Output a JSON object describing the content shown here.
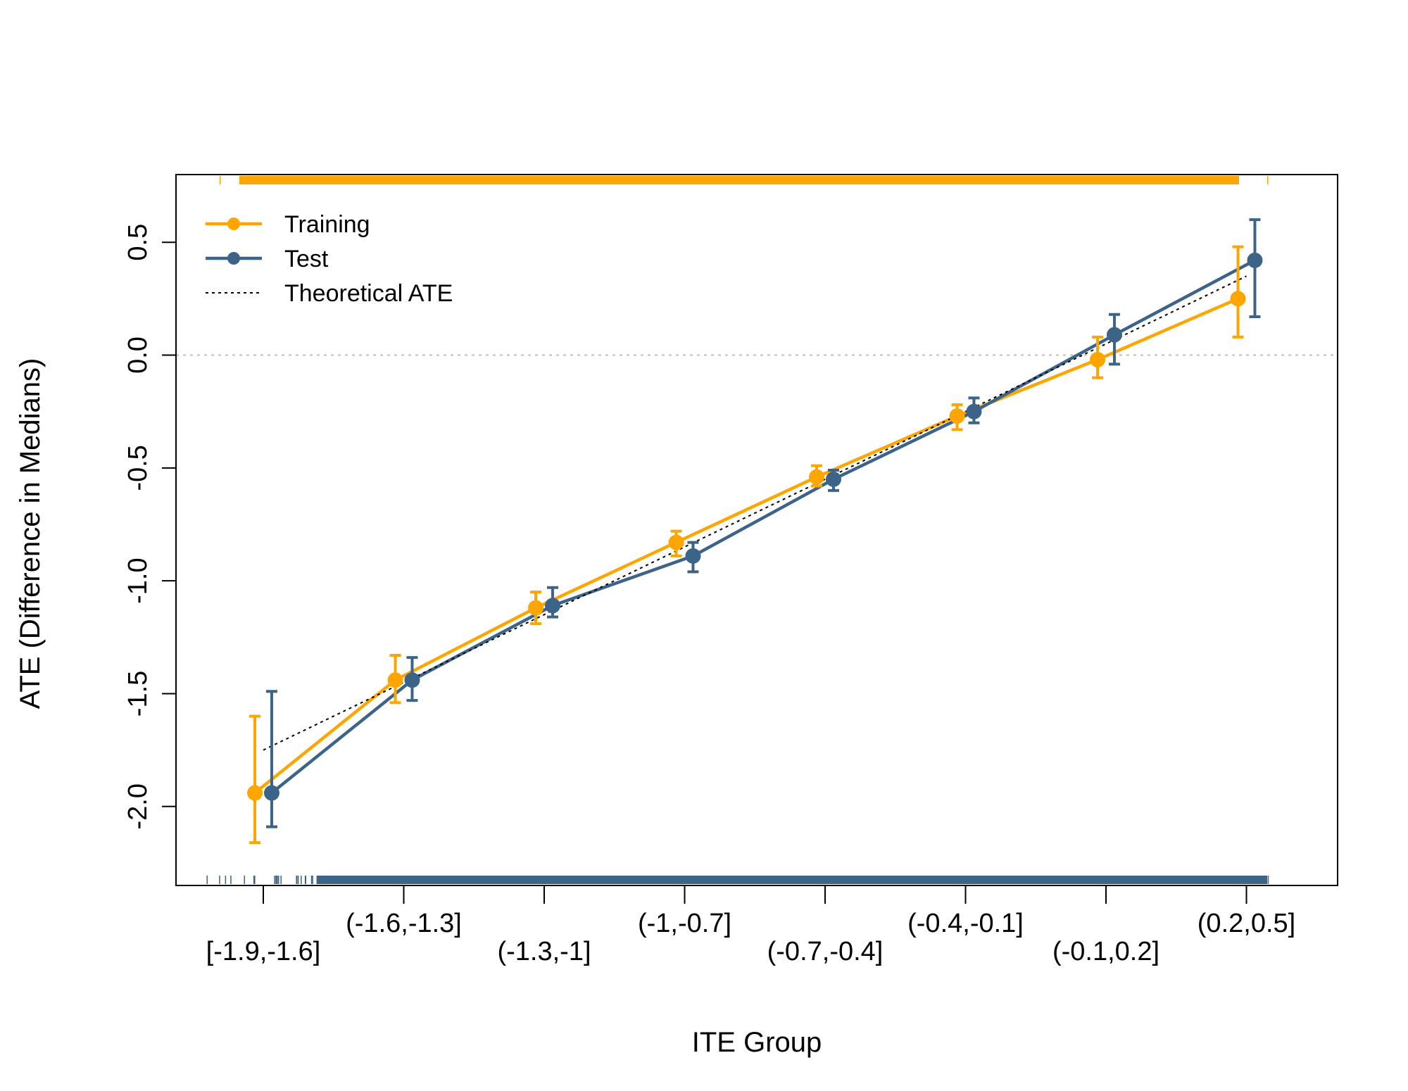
{
  "chart_data": {
    "type": "line",
    "title": "",
    "xlabel": "ITE Group",
    "ylabel": "ATE (Difference in Medians)",
    "categories": [
      "[-1.9,-1.6]",
      "(-1.6,-1.3]",
      "(-1.3,-1]",
      "(-1,-0.7]",
      "(-0.7,-0.4]",
      "(-0.4,-0.1]",
      "(-0.1,0.2]",
      "(0.2,0.5]"
    ],
    "ylim": [
      -2.35,
      0.8
    ],
    "yticks": [
      "-2.0",
      "-1.5",
      "-1.0",
      "-0.5",
      "0.0",
      "0.5"
    ],
    "ytick_values": [
      -2.0,
      -1.5,
      -1.0,
      -0.5,
      0.0,
      0.5
    ],
    "reference_line": {
      "y": 0.0,
      "style": "dotted",
      "color": "#bfbfbf"
    },
    "legend": {
      "position": "top-left",
      "entries": [
        "Training",
        "Test",
        "Theoretical ATE"
      ]
    },
    "series": [
      {
        "name": "Training",
        "color": "#FFA500",
        "values": [
          -1.94,
          -1.44,
          -1.12,
          -0.83,
          -0.54,
          -0.27,
          -0.02,
          0.25
        ],
        "lower": [
          -2.16,
          -1.54,
          -1.19,
          -0.89,
          -0.58,
          -0.33,
          -0.1,
          0.08
        ],
        "upper": [
          -1.6,
          -1.33,
          -1.05,
          -0.78,
          -0.49,
          -0.22,
          0.08,
          0.48
        ]
      },
      {
        "name": "Test",
        "color": "#3C6388",
        "values": [
          -1.94,
          -1.44,
          -1.11,
          -0.89,
          -0.55,
          -0.25,
          0.09,
          0.42
        ],
        "lower": [
          -2.09,
          -1.53,
          -1.16,
          -0.96,
          -0.6,
          -0.3,
          -0.04,
          0.17
        ],
        "upper": [
          -1.49,
          -1.34,
          -1.03,
          -0.83,
          -0.51,
          -0.19,
          0.18,
          0.6
        ]
      },
      {
        "name": "Theoretical ATE",
        "color": "#000000",
        "style": "dotted",
        "values": [
          -1.75,
          -1.45,
          -1.15,
          -0.85,
          -0.55,
          -0.25,
          0.05,
          0.35
        ]
      }
    ],
    "rug": {
      "top_color": "#FFA500",
      "bottom_color": "#3C6388"
    }
  }
}
